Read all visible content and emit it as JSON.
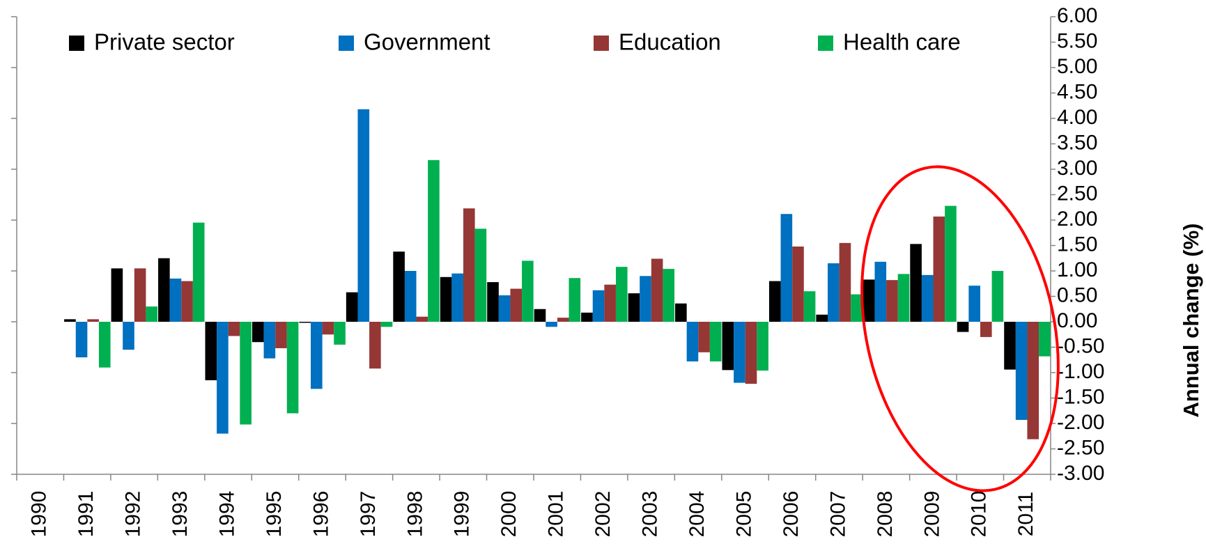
{
  "chart_data": {
    "type": "bar",
    "y_axis_label": "Annual change (%)",
    "categories": [
      "1990",
      "1991",
      "1992",
      "1993",
      "1994",
      "1995",
      "1996",
      "1997",
      "1998",
      "1999",
      "2000",
      "2001",
      "2002",
      "2003",
      "2004",
      "2005",
      "2006",
      "2007",
      "2008",
      "2009",
      "2010",
      "2011"
    ],
    "series": [
      {
        "name": "Private sector",
        "color": "#000000",
        "values": [
          null,
          0.05,
          1.05,
          1.25,
          -1.15,
          -0.4,
          -0.02,
          0.58,
          1.38,
          0.88,
          0.78,
          0.25,
          0.18,
          0.56,
          0.36,
          -0.95,
          0.8,
          0.14,
          0.83,
          1.53,
          -0.2,
          -0.94
        ]
      },
      {
        "name": "Government",
        "color": "#0070c0",
        "values": [
          null,
          -0.7,
          -0.55,
          0.85,
          -2.2,
          -0.72,
          -1.32,
          4.18,
          1.0,
          0.95,
          0.52,
          -0.1,
          0.62,
          0.9,
          -0.78,
          -1.2,
          2.12,
          1.15,
          1.18,
          0.92,
          0.71,
          -1.93
        ]
      },
      {
        "name": "Education",
        "color": "#953735",
        "values": [
          null,
          0.05,
          1.05,
          0.8,
          -0.28,
          -0.52,
          -0.25,
          -0.92,
          0.1,
          2.23,
          0.65,
          0.08,
          0.73,
          1.24,
          -0.6,
          -1.22,
          1.48,
          1.55,
          0.82,
          2.07,
          -0.3,
          -2.31
        ]
      },
      {
        "name": "Health care",
        "color": "#00b050",
        "values": [
          null,
          -0.9,
          0.3,
          1.95,
          -2.02,
          -1.8,
          -0.45,
          -0.1,
          3.18,
          1.83,
          1.2,
          0.86,
          1.08,
          1.04,
          -0.78,
          -0.96,
          0.6,
          0.54,
          0.94,
          2.28,
          1.0,
          -0.68
        ]
      }
    ],
    "ylim": [
      -3,
      6
    ],
    "yticks": [
      {
        "value": -3,
        "label": "-3.00"
      },
      {
        "value": -2.5,
        "label": "-2.50"
      },
      {
        "value": -2,
        "label": "-2.00"
      },
      {
        "value": -1.5,
        "label": "-1.50"
      },
      {
        "value": -1,
        "label": "-1.00"
      },
      {
        "value": -0.5,
        "label": "-0.50"
      },
      {
        "value": 0,
        "label": "0.00"
      },
      {
        "value": 0.5,
        "label": "0.50"
      },
      {
        "value": 1,
        "label": "1.00"
      },
      {
        "value": 1.5,
        "label": "1.50"
      },
      {
        "value": 2,
        "label": "2.00"
      },
      {
        "value": 2.5,
        "label": "2.50"
      },
      {
        "value": 3,
        "label": "3.00"
      },
      {
        "value": 3.5,
        "label": "3.50"
      },
      {
        "value": 4,
        "label": "4.00"
      },
      {
        "value": 4.5,
        "label": "4.50"
      },
      {
        "value": 5,
        "label": "5.00"
      },
      {
        "value": 5.5,
        "label": "5.50"
      },
      {
        "value": 6,
        "label": "6.00"
      }
    ],
    "negative_tick_color": "#ff0000",
    "legend": "top"
  }
}
